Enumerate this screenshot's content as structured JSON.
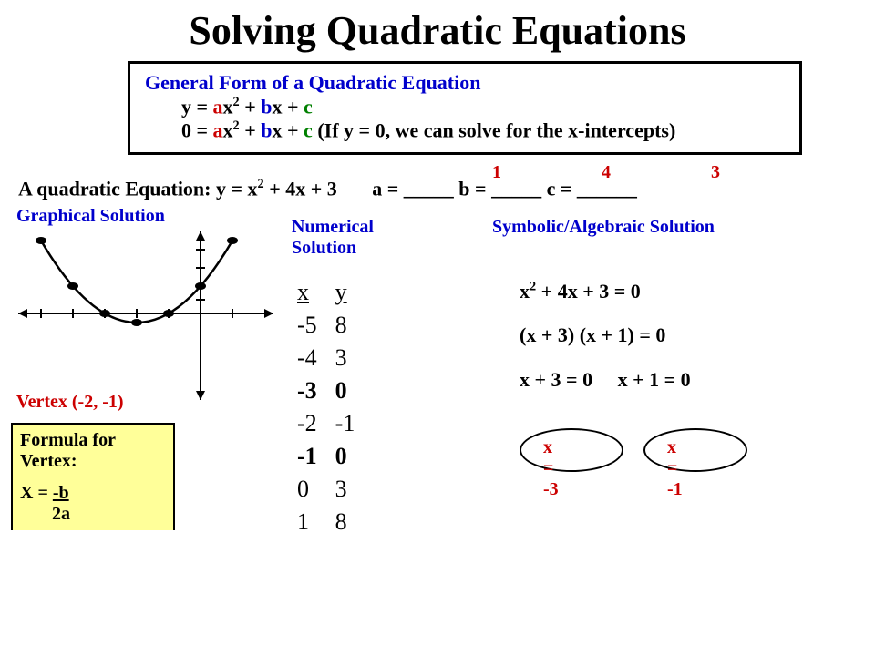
{
  "title": "Solving Quadratic Equations",
  "general": {
    "heading": "General Form of a Quadratic Equation",
    "line1_prefix": "y = ",
    "line2_prefix": "0 = ",
    "suffix": "  (If y = 0, we can solve for the x-intercepts)",
    "a": "a",
    "b": "b",
    "c": "c"
  },
  "equation": {
    "label": "A quadratic Equation:  y = x",
    "rest": " + 4x + 3",
    "a_label": "a = _____   b = _____   c = ______",
    "a_val": "1",
    "b_val": "4",
    "c_val": "3"
  },
  "graphical": {
    "label": "Graphical Solution",
    "vertex": "Vertex (-2, -1)",
    "parabola": {
      "vertex_xy": [
        -2,
        -1
      ],
      "points": [
        [
          -5,
          8
        ],
        [
          -4,
          3
        ],
        [
          -3,
          0
        ],
        [
          -2,
          -1
        ],
        [
          -1,
          0
        ],
        [
          0,
          3
        ],
        [
          1,
          8
        ]
      ],
      "axis_color": "#000000",
      "curve_color": "#000000",
      "point_color": "#000000"
    }
  },
  "formula": {
    "title": "Formula for Vertex:",
    "lhs": "X = ",
    "num": "-b",
    "den": "2a"
  },
  "numerical": {
    "label": "Numerical Solution",
    "header_x": "x",
    "header_y": "y",
    "rows": [
      {
        "x": "-5",
        "y": "8",
        "zero": false
      },
      {
        "x": "-4",
        "y": "3",
        "zero": false
      },
      {
        "x": "-3",
        "y": "0",
        "zero": true
      },
      {
        "x": "-2",
        "y": "-1",
        "zero": false
      },
      {
        "x": "-1",
        "y": " 0",
        "zero": true
      },
      {
        "x": " 0",
        "y": "3",
        "zero": false
      },
      {
        "x": " 1",
        "y": "8",
        "zero": false
      }
    ]
  },
  "symbolic": {
    "label": "Symbolic/Algebraic Solution",
    "line1": "x² + 4x + 3 = 0",
    "line2": "(x + 3) (x + 1) = 0",
    "line3a": "x + 3  = 0",
    "line3b": "x + 1 = 0",
    "sol1": "x = -3",
    "sol2": "x = -1"
  },
  "colors": {
    "red": "#cc0000",
    "blue": "#0000cc",
    "green": "#008000",
    "yellow_box": "#ffff99",
    "background": "#ffffff"
  }
}
